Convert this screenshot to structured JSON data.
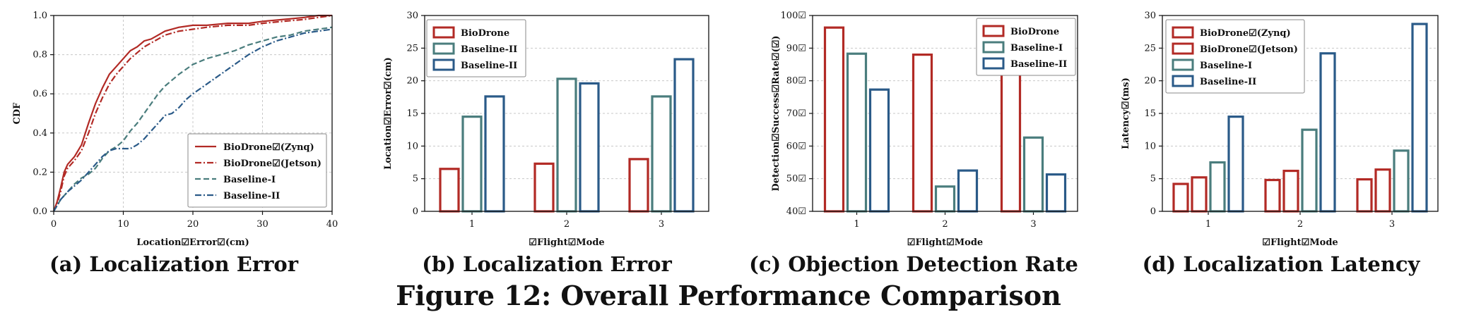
{
  "colors": {
    "red": "#b22a25",
    "teal": "#4a7d7d",
    "blue": "#2a5a88",
    "grid": "#c8c8c8"
  },
  "figure_title": "Figure 12: Overall Performance Comparison",
  "chart_data": [
    {
      "type": "line",
      "caption": "(a) Localization Error",
      "xlabel": "Location☑Error☑(cm)",
      "ylabel": "CDF",
      "xlim": [
        0,
        40
      ],
      "ylim": [
        0,
        1
      ],
      "xticks": [
        "0",
        "10",
        "20",
        "30",
        "40"
      ],
      "yticks": [
        "0.0",
        "0.2",
        "0.4",
        "0.6",
        "0.8",
        "1.0"
      ],
      "grid": true,
      "legend_position": "bottom-right",
      "series": [
        {
          "name": "BioDrone☑(Zynq)",
          "color": "red",
          "dash": "solid",
          "x": [
            0,
            0.5,
            1,
            1.5,
            2,
            3,
            4,
            5,
            6,
            7,
            8,
            9,
            10,
            11,
            12,
            13,
            14,
            15,
            16,
            18,
            20,
            22,
            25,
            28,
            30,
            33,
            36,
            38,
            40
          ],
          "y": [
            0,
            0.05,
            0.12,
            0.2,
            0.24,
            0.28,
            0.34,
            0.45,
            0.55,
            0.63,
            0.7,
            0.74,
            0.78,
            0.82,
            0.84,
            0.87,
            0.88,
            0.9,
            0.92,
            0.94,
            0.95,
            0.95,
            0.96,
            0.96,
            0.97,
            0.98,
            0.99,
            1.0,
            1.0
          ]
        },
        {
          "name": "BioDrone☑(Jetson)",
          "color": "red",
          "dash": "dashdot",
          "x": [
            0,
            0.5,
            1,
            1.5,
            2,
            3,
            4,
            5,
            6,
            7,
            8,
            9,
            10,
            11,
            12,
            13,
            14,
            15,
            16,
            18,
            20,
            22,
            25,
            28,
            30,
            33,
            36,
            38,
            40
          ],
          "y": [
            0,
            0.04,
            0.1,
            0.18,
            0.22,
            0.26,
            0.31,
            0.4,
            0.5,
            0.58,
            0.65,
            0.7,
            0.74,
            0.78,
            0.81,
            0.84,
            0.86,
            0.88,
            0.9,
            0.92,
            0.93,
            0.94,
            0.95,
            0.95,
            0.96,
            0.97,
            0.98,
            0.99,
            1.0
          ]
        },
        {
          "name": "Baseline-I",
          "color": "teal",
          "dash": "dash",
          "x": [
            0,
            1,
            2,
            3,
            4,
            5,
            6,
            7,
            8,
            9,
            10,
            11,
            12,
            13,
            14,
            15,
            16,
            18,
            20,
            22,
            24,
            26,
            28,
            30,
            32,
            34,
            36,
            38,
            40
          ],
          "y": [
            0,
            0.06,
            0.1,
            0.14,
            0.17,
            0.19,
            0.22,
            0.27,
            0.31,
            0.33,
            0.36,
            0.41,
            0.45,
            0.5,
            0.55,
            0.6,
            0.64,
            0.7,
            0.75,
            0.78,
            0.8,
            0.82,
            0.85,
            0.87,
            0.89,
            0.9,
            0.92,
            0.93,
            0.94
          ]
        },
        {
          "name": "Baseline-II",
          "color": "blue",
          "dash": "dashdot",
          "x": [
            0,
            1,
            2,
            3,
            4,
            5,
            6,
            7,
            8,
            9,
            10,
            11,
            12,
            13,
            14,
            15,
            16,
            17,
            18,
            19,
            20,
            22,
            24,
            26,
            28,
            30,
            32,
            34,
            36,
            38,
            40
          ],
          "y": [
            0,
            0.06,
            0.1,
            0.13,
            0.16,
            0.2,
            0.24,
            0.28,
            0.31,
            0.32,
            0.32,
            0.32,
            0.34,
            0.37,
            0.41,
            0.45,
            0.49,
            0.5,
            0.53,
            0.57,
            0.6,
            0.65,
            0.7,
            0.75,
            0.8,
            0.84,
            0.87,
            0.89,
            0.91,
            0.92,
            0.93
          ]
        }
      ]
    },
    {
      "type": "bar",
      "caption": "(b) Localization Error",
      "xlabel": "☑Flight☑Mode",
      "ylabel": "Location☑Error☑(cm)",
      "categories": [
        "1",
        "2",
        "3"
      ],
      "ylim": [
        0,
        30
      ],
      "yticks": [
        "0",
        "5",
        "10",
        "15",
        "20",
        "25",
        "30"
      ],
      "grid": true,
      "legend_position": "top-left",
      "series": [
        {
          "name": "BioDrone",
          "color": "red",
          "values": [
            6.5,
            7.3,
            8.0
          ]
        },
        {
          "name": "Baseline-II",
          "color": "teal",
          "values": [
            14.5,
            20.3,
            17.6
          ]
        },
        {
          "name": "Baseline-II",
          "color": "blue",
          "values": [
            17.6,
            19.6,
            23.3
          ]
        }
      ]
    },
    {
      "type": "bar",
      "caption": "(c) Objection Detection Rate",
      "xlabel": "☑Flight☑Mode",
      "ylabel": "Detection☑Success☑Rate☑(☑)",
      "categories": [
        "1",
        "2",
        "3"
      ],
      "ylim": [
        40,
        100
      ],
      "yticks": [
        "40☑",
        "50☑",
        "60☑",
        "70☑",
        "80☑",
        "90☑",
        "100☑"
      ],
      "grid": true,
      "legend_position": "top-right",
      "series": [
        {
          "name": "BioDrone",
          "color": "red",
          "values": [
            96.3,
            88.0,
            86.0
          ]
        },
        {
          "name": "Baseline-I",
          "color": "teal",
          "values": [
            88.3,
            47.6,
            62.6
          ]
        },
        {
          "name": "Baseline-II",
          "color": "blue",
          "values": [
            77.3,
            52.5,
            51.3
          ]
        }
      ]
    },
    {
      "type": "bar",
      "caption": "(d) Localization Latency",
      "xlabel": "☑Flight☑Mode",
      "ylabel": "Latency☑(ms)",
      "categories": [
        "1",
        "2",
        "3"
      ],
      "ylim": [
        0,
        30
      ],
      "yticks": [
        "0",
        "5",
        "10",
        "15",
        "20",
        "25",
        "30"
      ],
      "grid": true,
      "legend_position": "top-left",
      "series": [
        {
          "name": "BioDrone☑(Zynq)",
          "color": "red",
          "values": [
            4.2,
            4.8,
            4.9
          ]
        },
        {
          "name": "BioDrone☑(Jetson)",
          "color": "red",
          "values": [
            5.2,
            6.2,
            6.4
          ]
        },
        {
          "name": "Baseline-I",
          "color": "teal",
          "values": [
            7.5,
            12.5,
            9.3
          ]
        },
        {
          "name": "Baseline-II",
          "color": "blue",
          "values": [
            14.5,
            24.2,
            28.7
          ]
        }
      ]
    }
  ]
}
